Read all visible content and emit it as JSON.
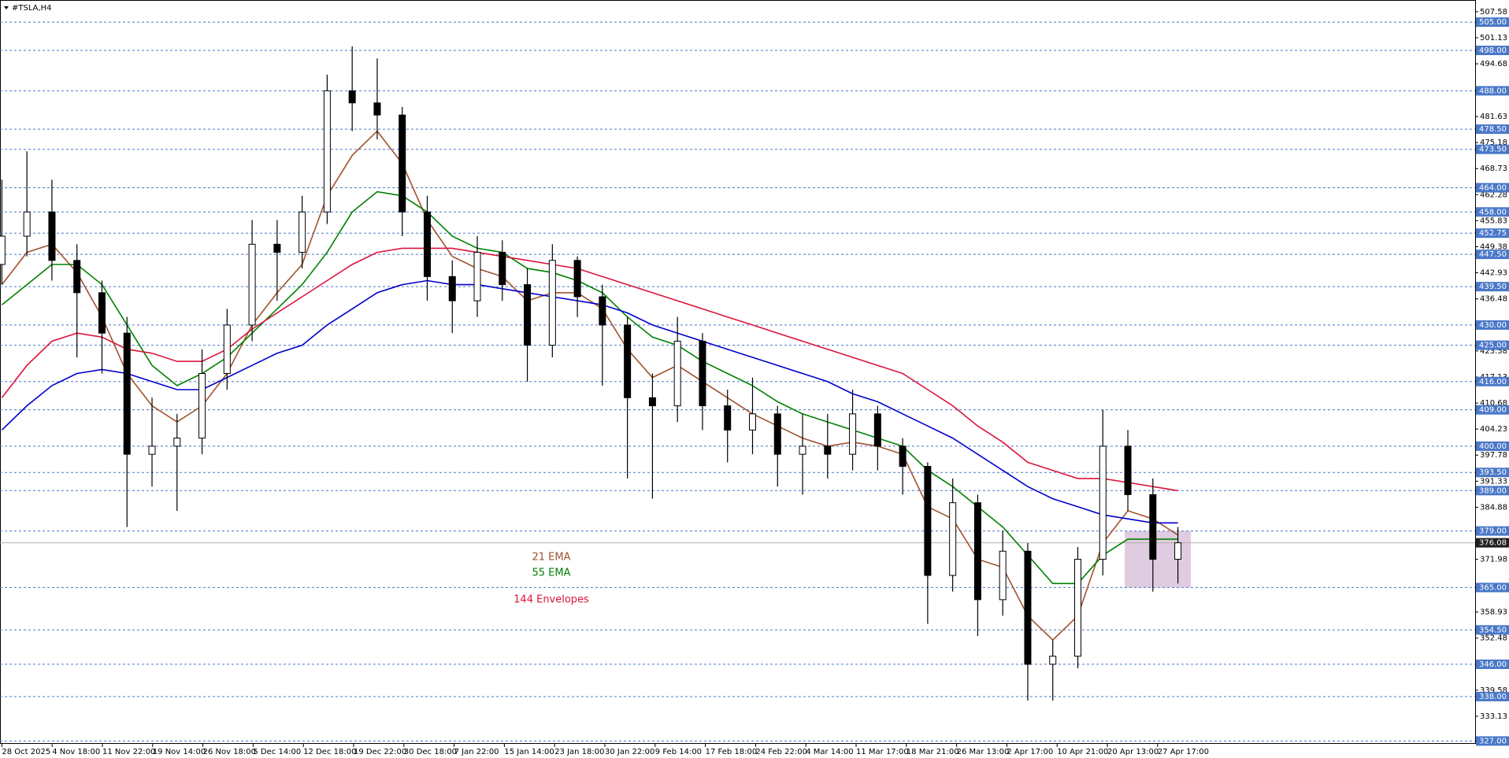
{
  "chart_data": {
    "type": "candlestick",
    "title": "#TSLA,H4",
    "ylim": [
      326.3,
      509.7
    ],
    "yticks": [
      507.58,
      501.13,
      494.68,
      481.63,
      475.18,
      468.73,
      462.28,
      455.83,
      449.38,
      442.93,
      436.48,
      423.58,
      417.13,
      410.68,
      404.23,
      397.78,
      391.33,
      384.88,
      371.98,
      358.93,
      352.48,
      339.58,
      333.13
    ],
    "x_labels": [
      "28 Oct 2025",
      "4 Nov 18:00",
      "11 Nov 22:00",
      "19 Nov 14:00",
      "26 Nov 18:00",
      "5 Dec 14:00",
      "12 Dec 18:00",
      "19 Dec 22:00",
      "30 Dec 18:00",
      "7 Jan 22:00",
      "15 Jan 14:00",
      "23 Jan 18:00",
      "30 Jan 22:00",
      "9 Feb 14:00",
      "17 Feb 18:00",
      "24 Feb 22:00",
      "4 Mar 14:00",
      "11 Mar 17:00",
      "18 Mar 21:00",
      "26 Mar 13:00",
      "2 Apr 17:00",
      "10 Apr 21:00",
      "20 Apr 13:00",
      "27 Apr 17:00"
    ],
    "candles": {
      "open": [
        445,
        452,
        458,
        446,
        438,
        428,
        398,
        400,
        402,
        418,
        430,
        450,
        448,
        458,
        488,
        485,
        482,
        458,
        442,
        436,
        448,
        440,
        425,
        446,
        437,
        430,
        412,
        410,
        426,
        410,
        404,
        408,
        398,
        400,
        398,
        408,
        400,
        395,
        368,
        386,
        362,
        374,
        346,
        348,
        372,
        400,
        388,
        372
      ],
      "high": [
        466,
        473,
        466,
        450,
        441,
        432,
        412,
        408,
        424,
        434,
        456,
        456,
        462,
        492,
        499,
        496,
        484,
        462,
        446,
        452,
        451,
        444,
        450,
        447,
        440,
        432,
        418,
        432,
        428,
        414,
        417,
        410,
        408,
        408,
        414,
        410,
        402,
        396,
        392,
        388,
        379,
        376,
        352,
        375,
        409,
        404,
        392,
        380
      ],
      "low": [
        440,
        447,
        441,
        422,
        418,
        380,
        390,
        384,
        398,
        414,
        426,
        436,
        444,
        455,
        478,
        476,
        452,
        436,
        428,
        432,
        436,
        416,
        422,
        432,
        415,
        392,
        387,
        406,
        404,
        396,
        398,
        390,
        388,
        392,
        394,
        394,
        388,
        356,
        364,
        353,
        358,
        337,
        337,
        345,
        368,
        384,
        364,
        366
      ],
      "close": [
        452,
        458,
        446,
        438,
        428,
        398,
        400,
        402,
        418,
        430,
        450,
        448,
        458,
        488,
        485,
        482,
        458,
        442,
        436,
        448,
        440,
        425,
        446,
        437,
        430,
        412,
        410,
        426,
        410,
        404,
        408,
        398,
        400,
        398,
        408,
        400,
        395,
        368,
        386,
        362,
        374,
        346,
        348,
        372,
        400,
        388,
        372,
        376.08
      ]
    },
    "series": [
      {
        "name": "21 EMA",
        "color": "#a0522d",
        "values": [
          440,
          448,
          450,
          443,
          432,
          418,
          410,
          406,
          410,
          418,
          430,
          438,
          445,
          462,
          472,
          478,
          470,
          456,
          447,
          444,
          442,
          436,
          438,
          438,
          434,
          424,
          417,
          420,
          416,
          412,
          408,
          405,
          402,
          400,
          401,
          400,
          398,
          385,
          382,
          372,
          370,
          358,
          352,
          358,
          376,
          384,
          382,
          378
        ]
      },
      {
        "name": "55 EMA",
        "color": "#008000",
        "values": [
          435,
          440,
          445,
          445,
          440,
          430,
          420,
          415,
          418,
          422,
          428,
          434,
          440,
          448,
          458,
          463,
          462,
          458,
          452,
          449,
          448,
          444,
          443,
          441,
          438,
          432,
          427,
          425,
          421,
          418,
          415,
          411,
          408,
          406,
          404,
          402,
          400,
          394,
          390,
          385,
          380,
          373,
          366,
          366,
          373,
          377,
          377,
          377
        ]
      },
      {
        "name": "144 Envelopes",
        "color": "#dc143c",
        "values": [
          412,
          420,
          426,
          428,
          427,
          424,
          423,
          421,
          421,
          424,
          429,
          433,
          437,
          441,
          445,
          448,
          449,
          449,
          449,
          448,
          447,
          446,
          445,
          444,
          442,
          440,
          438,
          436,
          434,
          432,
          430,
          428,
          426,
          424,
          422,
          420,
          418,
          414,
          410,
          405,
          401,
          396,
          394,
          392,
          392,
          391,
          390,
          389
        ]
      },
      {
        "color": "#0000cd",
        "values": [
          404,
          410,
          415,
          418,
          419,
          418,
          416,
          414,
          414,
          417,
          420,
          423,
          425,
          430,
          434,
          438,
          440,
          441,
          440,
          440,
          439,
          438,
          437,
          436,
          435,
          433,
          430,
          428,
          426,
          424,
          422,
          420,
          418,
          416,
          413,
          411,
          408,
          405,
          402,
          398,
          394,
          390,
          387,
          385,
          383,
          382,
          381,
          381
        ]
      }
    ],
    "levels": [
      {
        "value": 505,
        "label": "505.00"
      },
      {
        "value": 498,
        "label": "498.00"
      },
      {
        "value": 488,
        "label": "488.00"
      },
      {
        "value": 478.5,
        "label": "478.50"
      },
      {
        "value": 473.5,
        "label": "473.50"
      },
      {
        "value": 464,
        "label": "464.00"
      },
      {
        "value": 458,
        "label": "458.00"
      },
      {
        "value": 452.75,
        "label": "452.75"
      },
      {
        "value": 447.5,
        "label": "447.50"
      },
      {
        "value": 439.5,
        "label": "439.50"
      },
      {
        "value": 430,
        "label": "430.00"
      },
      {
        "value": 425,
        "label": "425.00"
      },
      {
        "value": 416,
        "label": "416.00"
      },
      {
        "value": 409,
        "label": "409.00"
      },
      {
        "value": 400,
        "label": "400.00"
      },
      {
        "value": 393.5,
        "label": "393.50"
      },
      {
        "value": 389,
        "label": "389.00"
      },
      {
        "value": 379,
        "label": "379.00"
      },
      {
        "value": 365,
        "label": "365.00"
      },
      {
        "value": 354.5,
        "label": "354.50"
      },
      {
        "value": 346,
        "label": "346.00"
      },
      {
        "value": 338,
        "label": "338.00"
      },
      {
        "value": 327,
        "label": "327.00"
      }
    ],
    "level_color": "#4a78c8",
    "current_price": 376.08,
    "highlight": {
      "y": [
        365,
        379
      ],
      "color": "#d8bfd8"
    }
  }
}
